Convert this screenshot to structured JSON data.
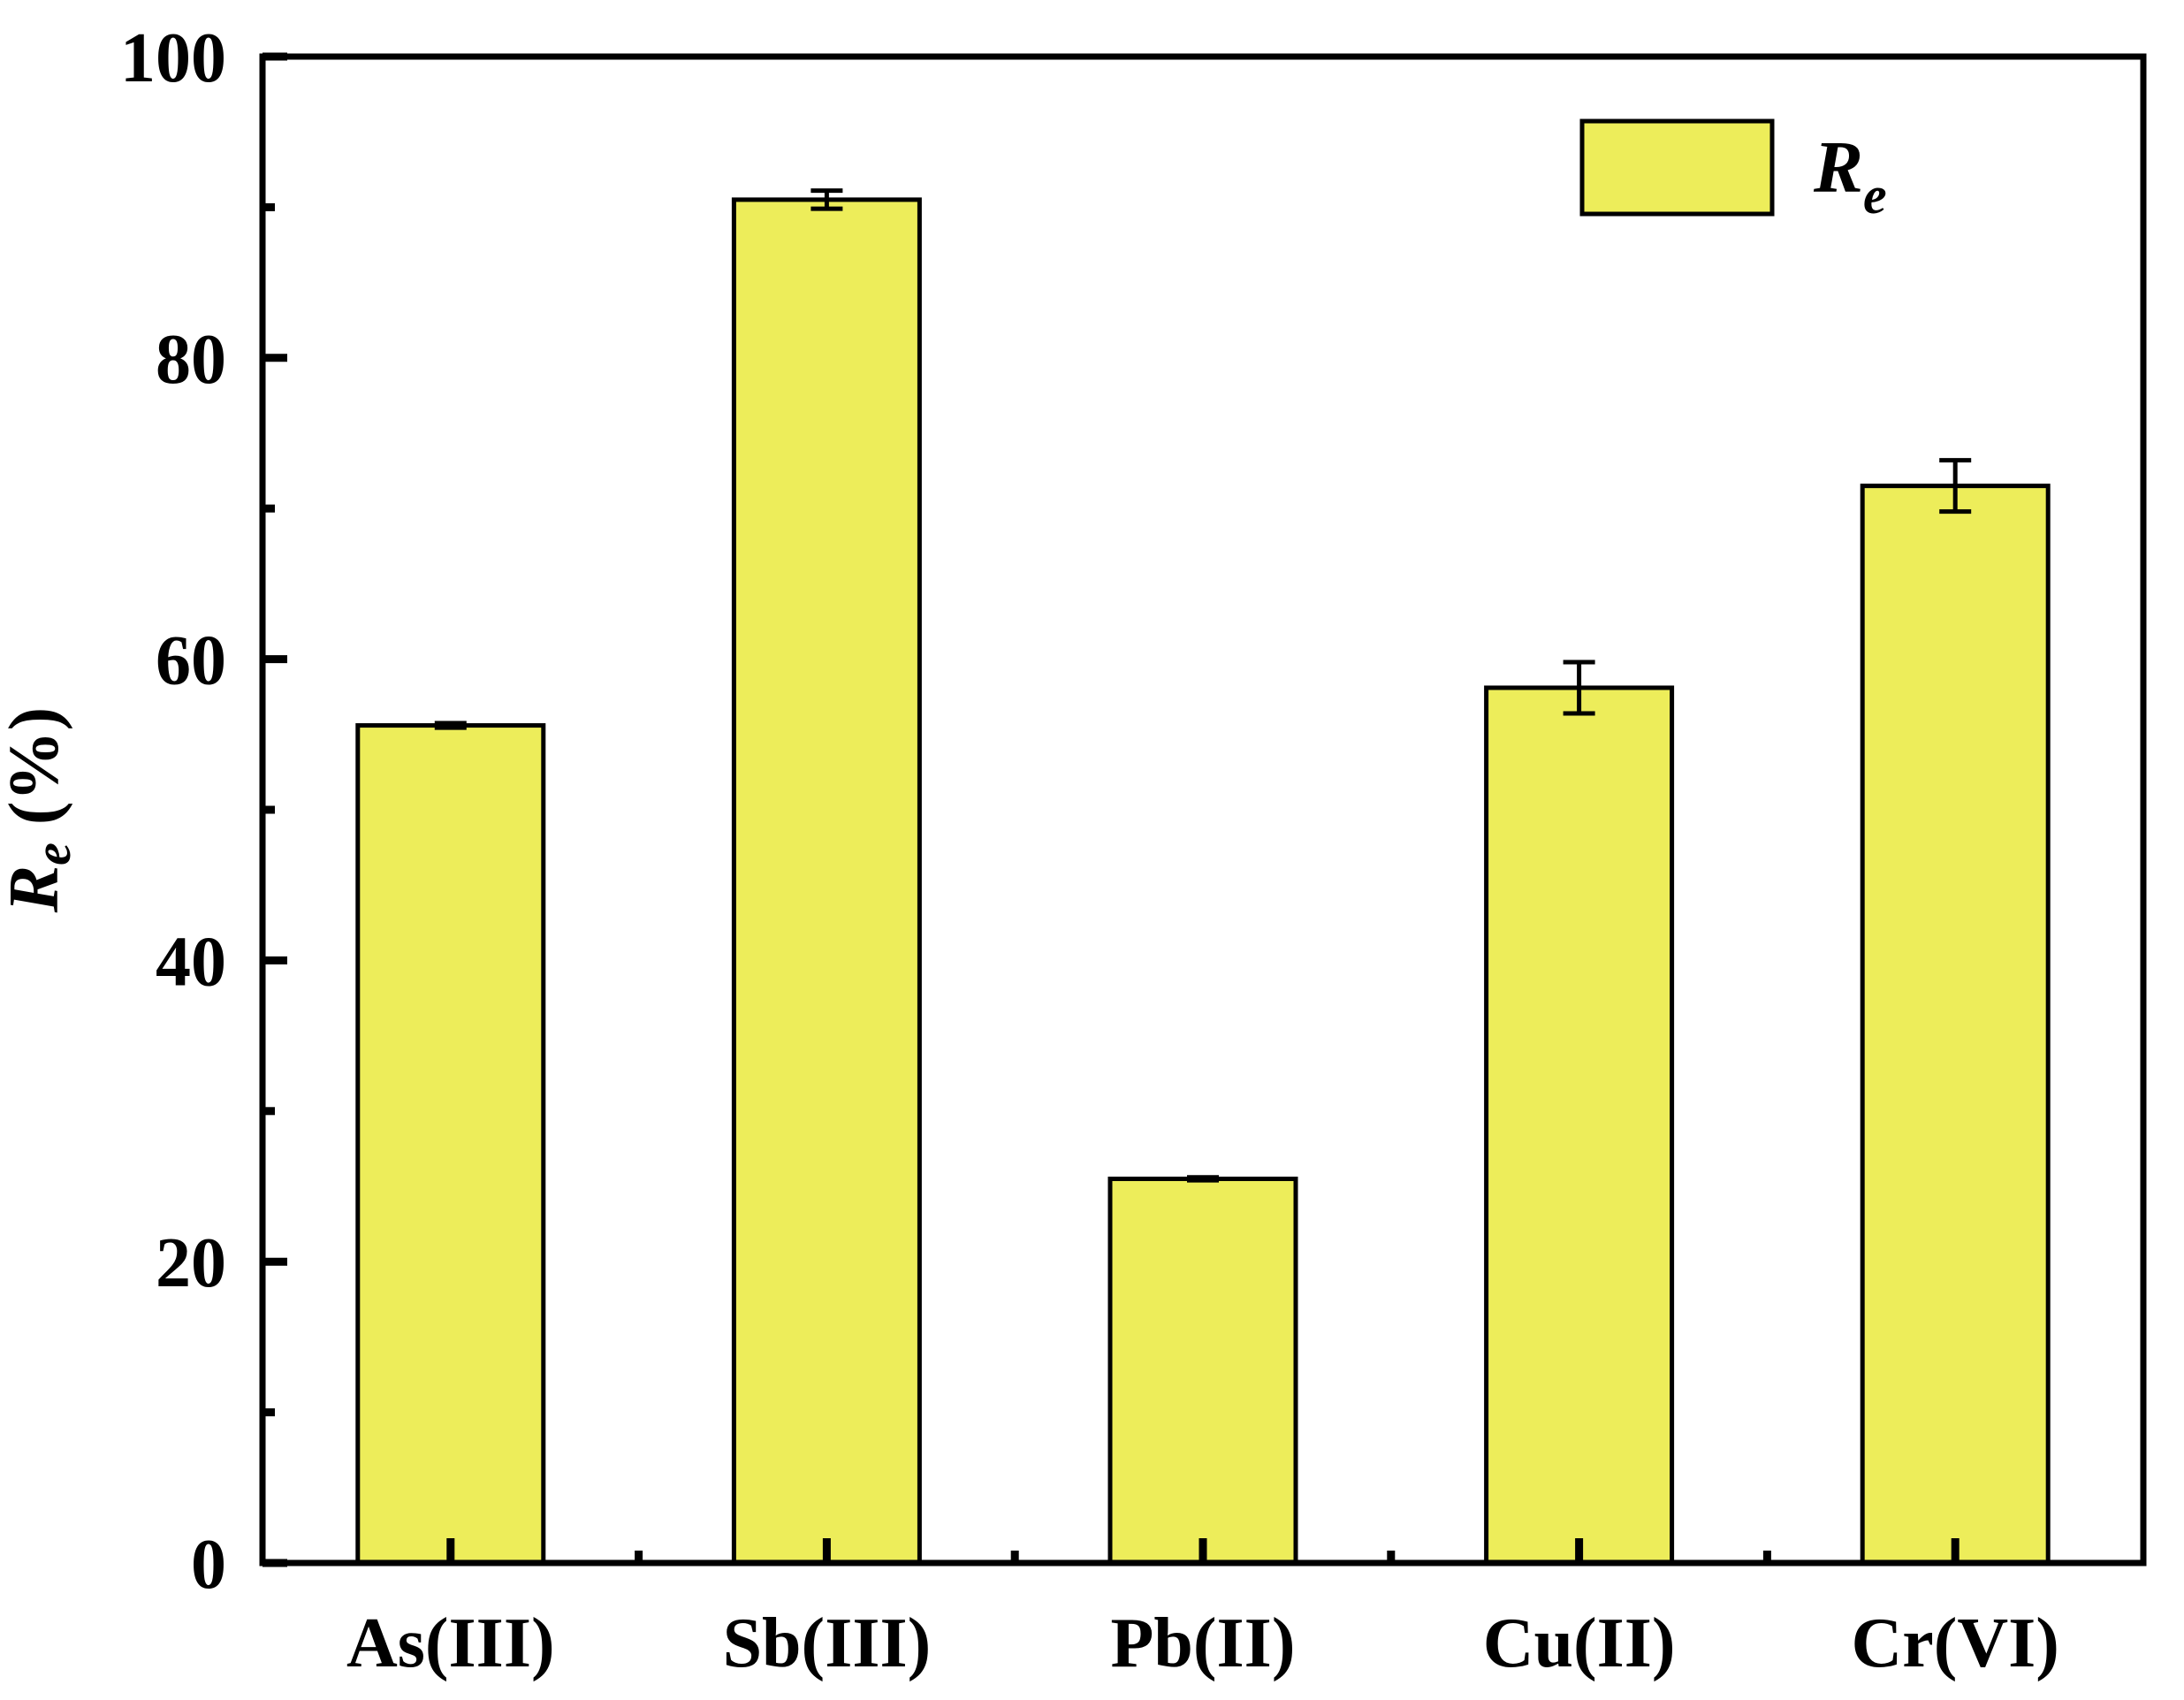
{
  "chart_data": {
    "type": "bar",
    "title": "",
    "xlabel": "",
    "ylabel": {
      "main": "R",
      "sub": "e",
      "unit": " (%)"
    },
    "categories": [
      "As(III)",
      "Sb(III)",
      "Pb(II)",
      "Cu(II)",
      "Cr(VI)"
    ],
    "series": [
      {
        "name": {
          "main": "R",
          "sub": "e"
        },
        "values": [
          55.6,
          90.5,
          25.5,
          58.1,
          71.5
        ],
        "errors": [
          0.15,
          0.6,
          0.1,
          1.7,
          1.7
        ],
        "color": "#eded5a"
      }
    ],
    "ylim": [
      0,
      100
    ],
    "yticks": [
      "0",
      "20",
      "40",
      "60",
      "80",
      "100"
    ],
    "legend_position": "top-right",
    "grid": false
  }
}
